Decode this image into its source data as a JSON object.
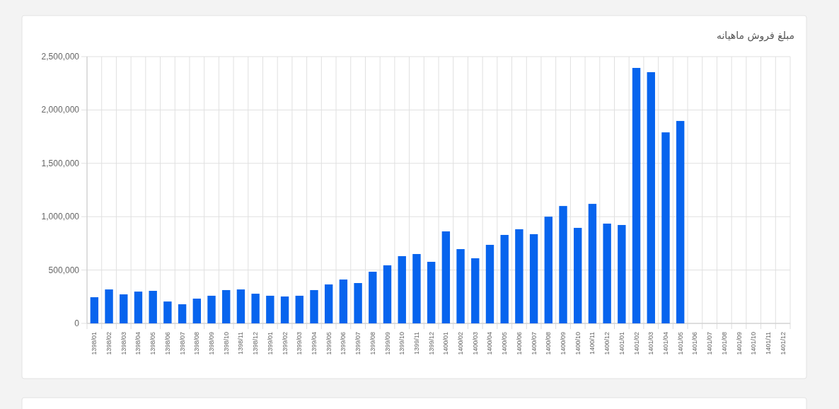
{
  "chart_data": {
    "type": "bar",
    "title": "مبلغ فروش ماهیانه",
    "categories": [
      "1398/01",
      "1398/02",
      "1398/03",
      "1398/04",
      "1398/05",
      "1398/06",
      "1398/07",
      "1398/08",
      "1398/09",
      "1398/10",
      "1398/11",
      "1398/12",
      "1399/01",
      "1399/02",
      "1399/03",
      "1399/04",
      "1399/05",
      "1399/06",
      "1399/07",
      "1399/08",
      "1399/09",
      "1399/10",
      "1399/11",
      "1399/12",
      "1400/01",
      "1400/02",
      "1400/03",
      "1400/04",
      "1400/05",
      "1400/06",
      "1400/07",
      "1400/08",
      "1400/09",
      "1400/10",
      "1400/11",
      "1400/12",
      "1401/01",
      "1401/02",
      "1401/03",
      "1401/04",
      "1401/05",
      "1401/06",
      "1401/07",
      "1401/08",
      "1401/09",
      "1401/10",
      "1401/11",
      "1401/12"
    ],
    "values": [
      245000,
      318000,
      272000,
      298000,
      305000,
      205000,
      179000,
      232000,
      259000,
      312000,
      318000,
      278000,
      259000,
      252000,
      259000,
      312000,
      365000,
      411000,
      378000,
      484000,
      544000,
      630000,
      650000,
      577000,
      862000,
      696000,
      610000,
      736000,
      829000,
      882000,
      836000,
      1000000,
      1100000,
      895000,
      1120000,
      935000,
      922000,
      2394000,
      2354000,
      1790000,
      1897000,
      null,
      null,
      null,
      null,
      null,
      null,
      null
    ],
    "color": "#0764ee",
    "ylim": [
      0,
      2500000
    ],
    "yticks": [
      {
        "value": 0,
        "label": "0"
      },
      {
        "value": 500000,
        "label": "500,000"
      },
      {
        "value": 1000000,
        "label": "1,000,000"
      },
      {
        "value": 1500000,
        "label": "1,500,000"
      },
      {
        "value": 2000000,
        "label": "2,000,000"
      },
      {
        "value": 2500000,
        "label": "2,500,000"
      }
    ],
    "grid": true
  }
}
